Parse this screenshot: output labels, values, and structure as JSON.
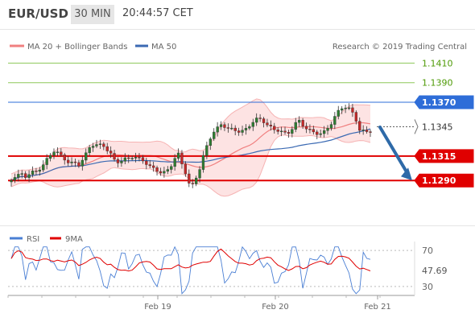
{
  "header": {
    "symbol": "EUR/USD",
    "timeframe": "30 MIN",
    "time": "20:44:57 CET"
  },
  "legend": {
    "ma20_label": "MA 20 + Bollinger Bands",
    "ma50_label": "MA 50",
    "credit": "Research © 2019 Trading Central",
    "rsi_label": "RSI",
    "ma9_label": "9MA"
  },
  "colors": {
    "ma20": "#f08080",
    "ma50": "#3b6ab3",
    "band_fill": "#fcd7d7",
    "resistance": "#8dc85a",
    "pivot": "#2e6dd8",
    "support": "#e00000",
    "current": "#555555",
    "rsi": "#4a7fd4",
    "arrow": "#2e6aa8"
  },
  "chart_data": [
    {
      "type": "candlestick",
      "title": "EUR/USD 30 MIN",
      "x_ticks": [
        "Feb 19",
        "Feb 20",
        "Feb 21"
      ],
      "ylim": [
        1.1265,
        1.1425
      ],
      "levels": [
        {
          "value": 1.141,
          "label": "1.1410",
          "kind": "resistance"
        },
        {
          "value": 1.139,
          "label": "1.1390",
          "kind": "resistance"
        },
        {
          "value": 1.137,
          "label": "1.1370",
          "kind": "pivot"
        },
        {
          "value": 1.1345,
          "label": "1.1345",
          "kind": "current"
        },
        {
          "value": 1.1315,
          "label": "1.1315",
          "kind": "support"
        },
        {
          "value": 1.129,
          "label": "1.1290",
          "kind": "support"
        }
      ],
      "series": [
        {
          "name": "MA 20 + Bollinger Bands"
        },
        {
          "name": "MA 50"
        }
      ],
      "forecast_target": 1.129
    },
    {
      "type": "line",
      "title": "RSI",
      "y_ticks": [
        70,
        30
      ],
      "ylim": [
        20,
        80
      ],
      "current_value": 47.69,
      "current_label": "47.69",
      "series": [
        {
          "name": "RSI"
        },
        {
          "name": "9MA"
        }
      ]
    }
  ]
}
